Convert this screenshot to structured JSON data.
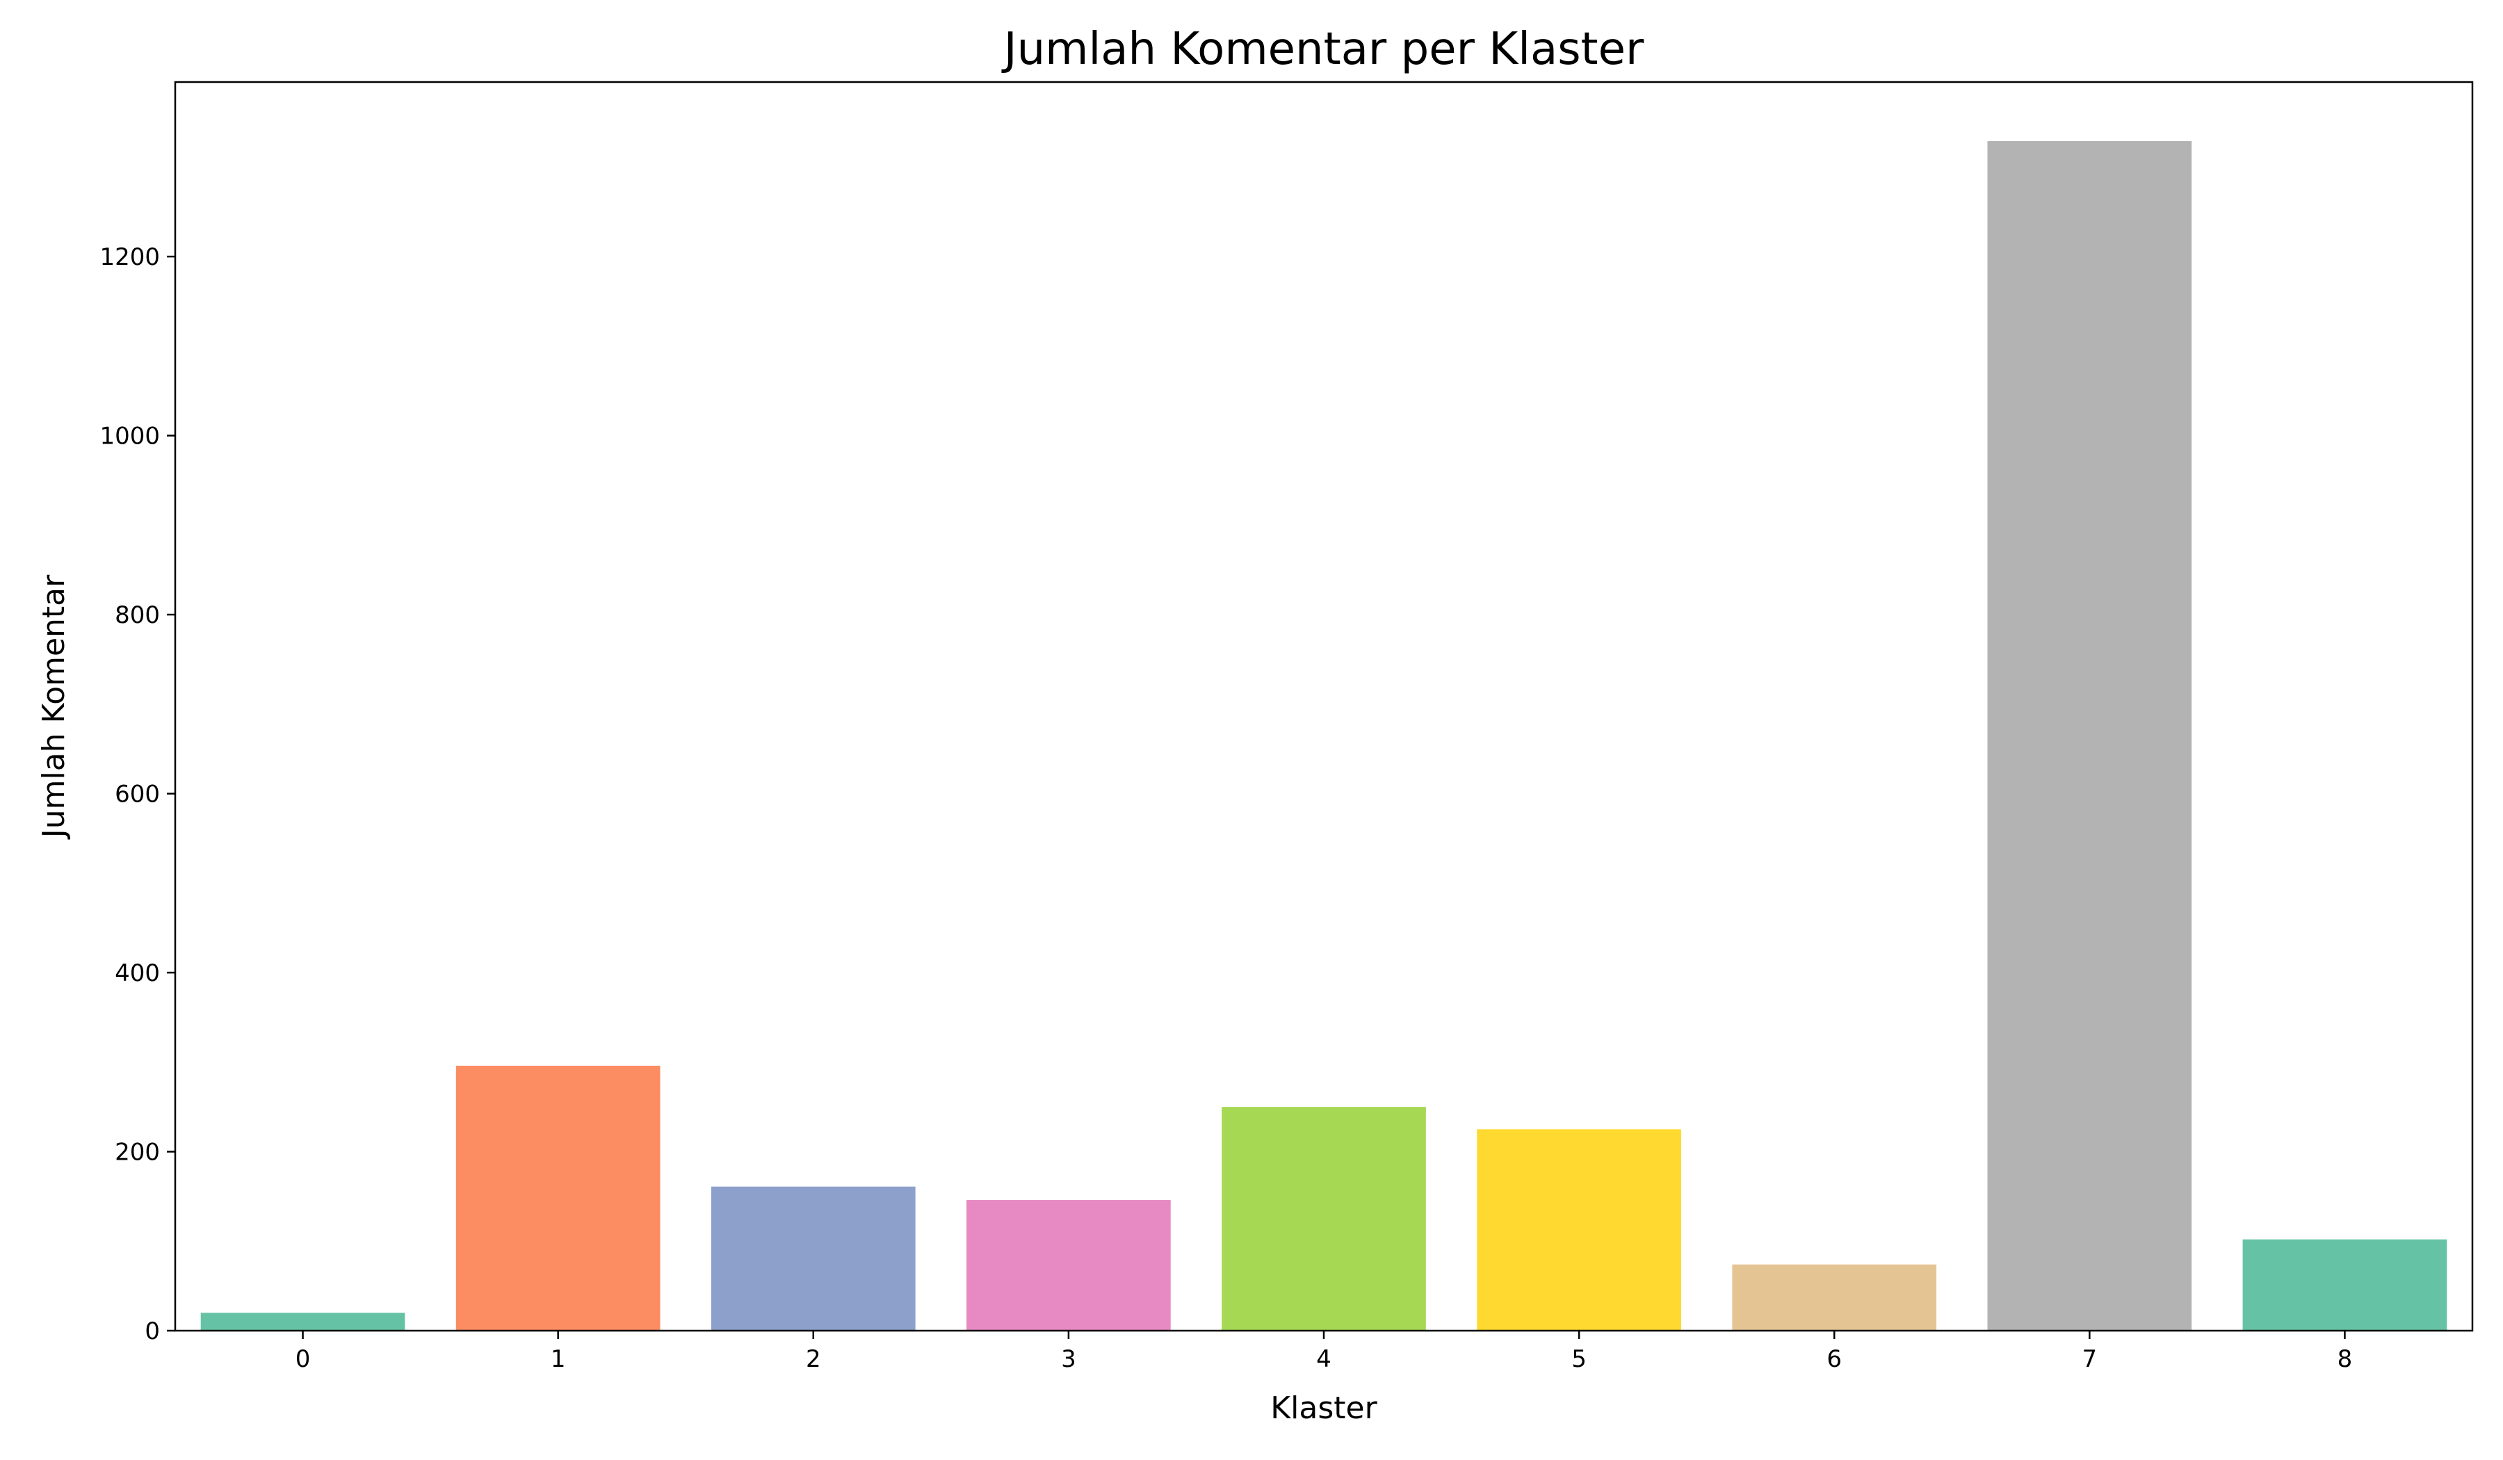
{
  "chart_data": {
    "type": "bar",
    "title": "Jumlah Komentar per Klaster",
    "xlabel": "Klaster",
    "ylabel": "Jumlah Komentar",
    "categories": [
      "0",
      "1",
      "2",
      "3",
      "4",
      "5",
      "6",
      "7",
      "8"
    ],
    "values": [
      20,
      296,
      161,
      146,
      250,
      225,
      74,
      1329,
      102
    ],
    "colors": [
      "#66c2a5",
      "#fc8d62",
      "#8da0cb",
      "#e78ac3",
      "#a6d854",
      "#ffd92f",
      "#e5c494",
      "#b3b3b3",
      "#66c2a5"
    ],
    "ylim": [
      0,
      1395
    ],
    "yticks": [
      0,
      200,
      400,
      600,
      800,
      1000,
      1200
    ],
    "grid": false,
    "legend": "none"
  }
}
